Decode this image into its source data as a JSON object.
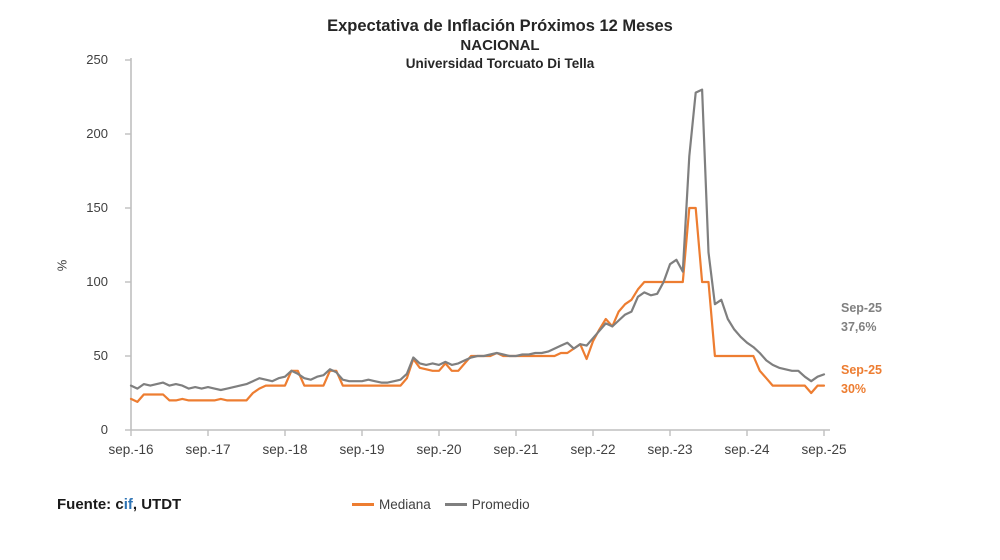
{
  "title": {
    "line1": "Expectativa de Inflación Próximos 12 Meses",
    "line2": "NACIONAL",
    "line3": "Universidad Torcuato Di Tella"
  },
  "footer": {
    "fuente_prefix": "Fuente: ",
    "fuente_c": "c",
    "fuente_if": "if",
    "fuente_suffix": ", UTDT",
    "cif_highlight_color": "#2E74B5"
  },
  "legend": [
    {
      "label": "Mediana",
      "color": "#ED7D31"
    },
    {
      "label": "Promedio",
      "color": "#7F7F7F"
    }
  ],
  "annotations": {
    "promedio": {
      "line1": "Sep-25",
      "line2": "37,6%",
      "color": "#808080"
    },
    "mediana": {
      "line1": "Sep-25",
      "line2": "30%",
      "color": "#ED7D31"
    }
  },
  "chart_data": {
    "type": "line",
    "title": "Expectativa de Inflación Próximos 12 Meses - NACIONAL - Universidad Torcuato Di Tella",
    "xlabel": "",
    "ylabel": "%",
    "ylim": [
      0,
      250
    ],
    "y_ticks": [
      "0",
      "50",
      "100",
      "150",
      "200",
      "250"
    ],
    "x_tick_labels": [
      "sep.-16",
      "sep.-17",
      "sep.-18",
      "sep.-19",
      "sep.-20",
      "sep.-21",
      "sep.-22",
      "sep.-23",
      "sep.-24",
      "sep.-25"
    ],
    "x_start": "2016-09",
    "x_frequency": "monthly",
    "grid": "off",
    "legend_position": "bottom",
    "series": [
      {
        "name": "Mediana",
        "color": "#ED7D31",
        "last_point_label": "Sep-25 30%",
        "values": [
          21,
          19,
          24,
          24,
          24,
          24,
          20,
          20,
          21,
          20,
          20,
          20,
          20,
          20,
          21,
          20,
          20,
          20,
          20,
          25,
          28,
          30,
          30,
          30,
          30,
          40,
          40,
          30,
          30,
          30,
          30,
          40,
          40,
          30,
          30,
          30,
          30,
          30,
          30,
          30,
          30,
          30,
          30,
          35,
          48,
          42,
          41,
          40,
          40,
          45,
          40,
          40,
          45,
          50,
          50,
          50,
          50,
          52,
          50,
          50,
          50,
          50,
          50,
          50,
          50,
          50,
          50,
          52,
          52,
          55,
          58,
          48,
          60,
          68,
          75,
          70,
          80,
          85,
          88,
          95,
          100,
          100,
          100,
          100,
          100,
          100,
          100,
          150,
          150,
          100,
          100,
          50,
          50,
          50,
          50,
          50,
          50,
          50,
          40,
          35,
          30,
          30,
          30,
          30,
          30,
          30,
          25,
          30,
          30
        ]
      },
      {
        "name": "Promedio",
        "color": "#7F7F7F",
        "last_point_label": "Sep-25 37,6%",
        "values": [
          30,
          28,
          31,
          30,
          31,
          32,
          30,
          31,
          30,
          28,
          29,
          28,
          29,
          28,
          27,
          28,
          29,
          30,
          31,
          33,
          35,
          34,
          33,
          35,
          36,
          40,
          38,
          35,
          34,
          36,
          37,
          41,
          39,
          34,
          33,
          33,
          33,
          34,
          33,
          32,
          32,
          33,
          34,
          38,
          49,
          45,
          44,
          45,
          44,
          46,
          44,
          45,
          47,
          49,
          50,
          50,
          51,
          52,
          51,
          50,
          50,
          51,
          51,
          52,
          52,
          53,
          55,
          57,
          59,
          55,
          58,
          57,
          62,
          67,
          72,
          70,
          74,
          78,
          80,
          90,
          93,
          91,
          92,
          100,
          112,
          115,
          107,
          185,
          228,
          230,
          120,
          85,
          88,
          75,
          68,
          63,
          59,
          56,
          52,
          47,
          44,
          42,
          41,
          40,
          40,
          36,
          33,
          36,
          37.6
        ]
      }
    ]
  }
}
